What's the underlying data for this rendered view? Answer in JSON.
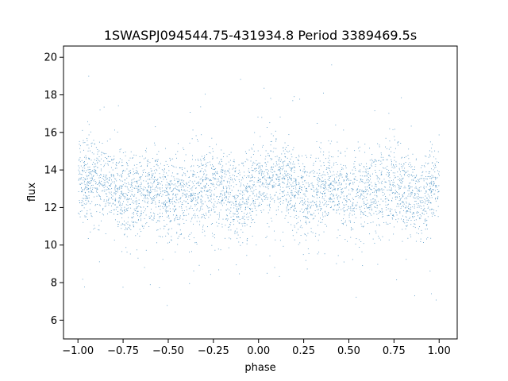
{
  "chart_data": {
    "type": "scatter",
    "title": "1SWASPJ094544.75-431934.8 Period 3389469.5s",
    "xlabel": "phase",
    "ylabel": "flux",
    "xlim": [
      -1.08,
      1.1
    ],
    "ylim": [
      5.0,
      20.6
    ],
    "xticks": [
      -1.0,
      -0.75,
      -0.5,
      -0.25,
      0.0,
      0.25,
      0.5,
      0.75,
      1.0
    ],
    "xtick_labels": [
      "−1.00",
      "−0.75",
      "−0.50",
      "−0.25",
      "0.00",
      "0.25",
      "0.50",
      "0.75",
      "1.00"
    ],
    "yticks": [
      6,
      8,
      10,
      12,
      14,
      16,
      18,
      20
    ],
    "ytick_labels": [
      "6",
      "8",
      "10",
      "12",
      "14",
      "16",
      "18",
      "20"
    ],
    "grid": false,
    "legend": "none",
    "marker_color": "#1f77b4",
    "series": [
      {
        "x_range": [
          -1.0,
          1.0
        ],
        "mean_flux_profile": {
          "phase": [
            -1.0,
            -0.9,
            -0.8,
            -0.7,
            -0.6,
            -0.5,
            -0.4,
            -0.3,
            -0.2,
            -0.1,
            0.0,
            0.1,
            0.2,
            0.3,
            0.4,
            0.5,
            0.6,
            0.7,
            0.8,
            0.9,
            1.0
          ],
          "flux": [
            13.3,
            13.6,
            13.0,
            12.6,
            13.2,
            12.3,
            12.8,
            13.0,
            12.9,
            12.4,
            13.3,
            13.6,
            13.0,
            12.6,
            13.2,
            12.3,
            12.8,
            13.0,
            12.9,
            12.4,
            13.3
          ]
        },
        "typical_flux_range": [
          10.0,
          16.0
        ],
        "full_flux_range": [
          5.8,
          20.0
        ]
      }
    ]
  }
}
